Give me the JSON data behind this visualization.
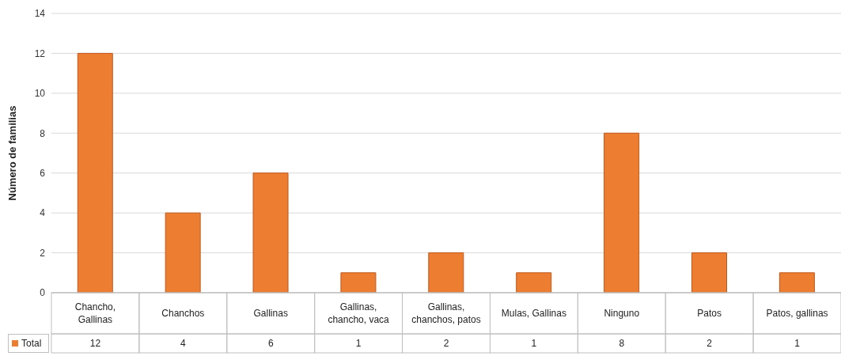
{
  "chart_data": {
    "type": "bar",
    "ylabel": "Número de familias",
    "categories": [
      "Chancho, Gallinas",
      "Chanchos",
      "Gallinas",
      "Gallinas, chancho, vaca",
      "Gallinas, chanchos, patos",
      "Mulas, Gallinas",
      "Ninguno",
      "Patos",
      "Patos, gallinas"
    ],
    "series": [
      {
        "name": "Total",
        "color": "#ed7d31",
        "values": [
          12,
          4,
          6,
          1,
          2,
          1,
          8,
          2,
          1
        ]
      }
    ],
    "ylim": [
      0,
      14
    ],
    "yticks": [
      0,
      2,
      4,
      6,
      8,
      10,
      12,
      14
    ],
    "grid": "y",
    "legend": "bottom left",
    "data_labels": true
  }
}
